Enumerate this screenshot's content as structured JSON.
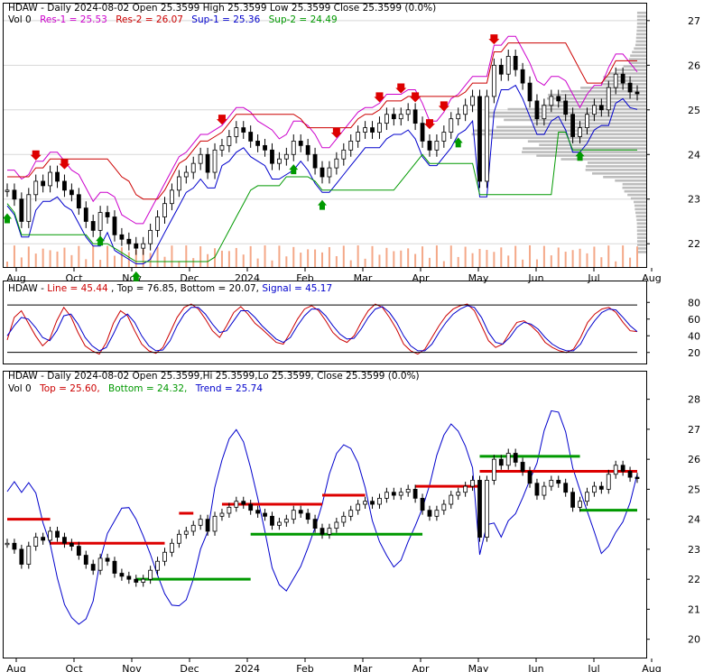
{
  "chart_data": [
    {
      "type": "candlestick",
      "panel": "price",
      "header": {
        "segments": [
          {
            "text": "HDAW - Daily 2024-08-02 Open 25.3599  High 25.3599  Low 25.3599  Close 25.3599 (0.0%)",
            "color": "#000000"
          }
        ],
        "line2": [
          {
            "text": "Vol 0",
            "color": "#000000"
          },
          {
            "text": "Res-1 = 25.53",
            "color": "#cc00cc"
          },
          {
            "text": "Res-2 = 26.07",
            "color": "#cc0000"
          },
          {
            "text": "Sup-1 = 25.36",
            "color": "#0000cc"
          },
          {
            "text": "Sup-2 = 24.49",
            "color": "#009900"
          }
        ]
      },
      "y_ticks": [
        "27",
        "26",
        "25",
        "24",
        "23",
        "22"
      ],
      "ylim": [
        21.6,
        27.3
      ],
      "x_labels": [
        "Aug",
        "Oct",
        "Nov",
        "Dec",
        "2024",
        "Feb",
        "Mar",
        "Apr",
        "May",
        "Jun",
        "Jul",
        "Aug"
      ],
      "close": [
        23.2,
        23.0,
        22.5,
        23.1,
        23.4,
        23.3,
        23.6,
        23.4,
        23.2,
        23.1,
        22.8,
        22.5,
        22.3,
        22.7,
        22.6,
        22.2,
        22.1,
        22.0,
        21.9,
        22.0,
        22.3,
        22.6,
        22.9,
        23.2,
        23.5,
        23.6,
        23.8,
        24.0,
        23.6,
        24.1,
        24.2,
        24.4,
        24.6,
        24.5,
        24.3,
        24.2,
        24.1,
        23.8,
        23.9,
        24.0,
        24.3,
        24.2,
        24.0,
        23.7,
        23.5,
        23.7,
        23.9,
        24.1,
        24.3,
        24.5,
        24.6,
        24.5,
        24.7,
        24.9,
        24.8,
        24.9,
        25.0,
        24.7,
        24.3,
        24.1,
        24.3,
        24.5,
        24.8,
        24.9,
        25.1,
        25.3,
        23.4,
        25.3,
        26.0,
        25.8,
        26.2,
        25.9,
        25.6,
        25.2,
        24.8,
        25.1,
        25.3,
        25.2,
        24.9,
        24.4,
        24.6,
        24.9,
        25.1,
        25.0,
        25.5,
        25.8,
        25.6,
        25.4,
        25.36
      ],
      "volume_note": "Vol 0"
    },
    {
      "type": "line",
      "panel": "stochastic",
      "header": [
        {
          "text": "HDAW - ",
          "color": "#000000"
        },
        {
          "text": "Line = 45.44",
          "color": "#cc0000"
        },
        {
          "text": ", Top = 76.85, Bottom = 20.07, ",
          "color": "#000000"
        },
        {
          "text": "Signal = 45.17",
          "color": "#0000cc"
        }
      ],
      "y_ticks": [
        "80",
        "60",
        "40",
        "20"
      ],
      "ylim": [
        10,
        90
      ],
      "series": [
        {
          "name": "Line",
          "color": "#cc0000",
          "values": [
            35,
            62,
            70,
            55,
            40,
            28,
            36,
            58,
            74,
            63,
            44,
            28,
            22,
            18,
            32,
            55,
            70,
            64,
            46,
            30,
            22,
            19,
            26,
            44,
            62,
            74,
            78,
            72,
            60,
            46,
            38,
            52,
            68,
            75,
            66,
            55,
            48,
            40,
            32,
            30,
            44,
            60,
            72,
            76,
            70,
            58,
            44,
            36,
            32,
            40,
            56,
            70,
            78,
            74,
            62,
            48,
            30,
            22,
            18,
            24,
            38,
            52,
            64,
            72,
            76,
            78,
            70,
            52,
            34,
            26,
            30,
            44,
            56,
            58,
            52,
            44,
            32,
            26,
            22,
            20,
            24,
            38,
            56,
            66,
            72,
            74,
            68,
            56,
            46,
            45
          ]
        },
        {
          "name": "Signal",
          "color": "#0000cc",
          "values": [
            40,
            52,
            62,
            60,
            50,
            38,
            34,
            46,
            64,
            66,
            54,
            38,
            28,
            22,
            26,
            42,
            60,
            66,
            56,
            40,
            28,
            22,
            23,
            34,
            52,
            66,
            74,
            74,
            66,
            54,
            44,
            46,
            58,
            70,
            70,
            62,
            52,
            44,
            36,
            32,
            38,
            52,
            64,
            72,
            72,
            64,
            52,
            42,
            36,
            37,
            48,
            62,
            72,
            75,
            68,
            56,
            40,
            28,
            22,
            22,
            30,
            44,
            56,
            66,
            72,
            76,
            74,
            62,
            44,
            32,
            30,
            38,
            50,
            56,
            54,
            48,
            38,
            30,
            25,
            22,
            22,
            30,
            46,
            58,
            68,
            72,
            71,
            62,
            52,
            45
          ]
        },
        {
          "name": "Top",
          "color": "#000000",
          "values": [
            76.85
          ]
        },
        {
          "name": "Bottom",
          "color": "#000000",
          "values": [
            20.07
          ]
        }
      ]
    },
    {
      "type": "candlestick",
      "panel": "trend",
      "header": {
        "segments": [
          {
            "text": "HDAW - Daily 2024-08-02 Open 25.3599,Hi 25.3599,Lo 25.3599, Close 25.3599 (0.0%)",
            "color": "#000000"
          }
        ],
        "line2": [
          {
            "text": "Vol 0",
            "color": "#000000"
          },
          {
            "text": "Top = 25.60,",
            "color": "#cc0000"
          },
          {
            "text": "Bottom = 24.32,",
            "color": "#009900"
          },
          {
            "text": "Trend = 25.74",
            "color": "#0000cc"
          }
        ]
      },
      "y_ticks": [
        "28",
        "27",
        "26",
        "25",
        "24",
        "23",
        "22",
        "21",
        "20"
      ],
      "ylim": [
        19.6,
        28.5
      ],
      "x_labels": [
        "Aug",
        "Oct",
        "Nov",
        "Dec",
        "2024",
        "Feb",
        "Mar",
        "Apr",
        "May",
        "Jun",
        "Jul",
        "Aug"
      ]
    }
  ]
}
